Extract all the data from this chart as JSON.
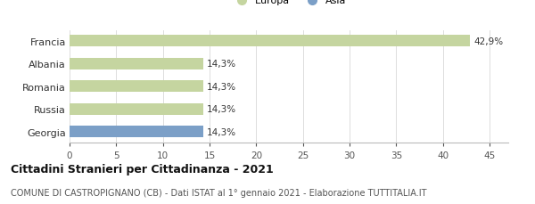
{
  "categories": [
    "Francia",
    "Albania",
    "Romania",
    "Russia",
    "Georgia"
  ],
  "values": [
    42.9,
    14.3,
    14.3,
    14.3,
    14.3
  ],
  "labels": [
    "42,9%",
    "14,3%",
    "14,3%",
    "14,3%",
    "14,3%"
  ],
  "bar_colors": [
    "#c5d5a0",
    "#c5d5a0",
    "#c5d5a0",
    "#c5d5a0",
    "#7b9fc7"
  ],
  "legend": [
    {
      "label": "Europa",
      "color": "#c5d5a0"
    },
    {
      "label": "Asia",
      "color": "#7b9fc7"
    }
  ],
  "xlim": [
    0,
    47
  ],
  "xticks": [
    0,
    5,
    10,
    15,
    20,
    25,
    30,
    35,
    40,
    45
  ],
  "title": "Cittadini Stranieri per Cittadinanza - 2021",
  "subtitle": "COMUNE DI CASTROPIGNANO (CB) - Dati ISTAT al 1° gennaio 2021 - Elaborazione TUTTITALIA.IT",
  "background_color": "#ffffff",
  "bar_height": 0.5,
  "label_fontsize": 7.5,
  "title_fontsize": 9,
  "subtitle_fontsize": 7,
  "tick_fontsize": 7.5,
  "ylabel_fontsize": 8
}
